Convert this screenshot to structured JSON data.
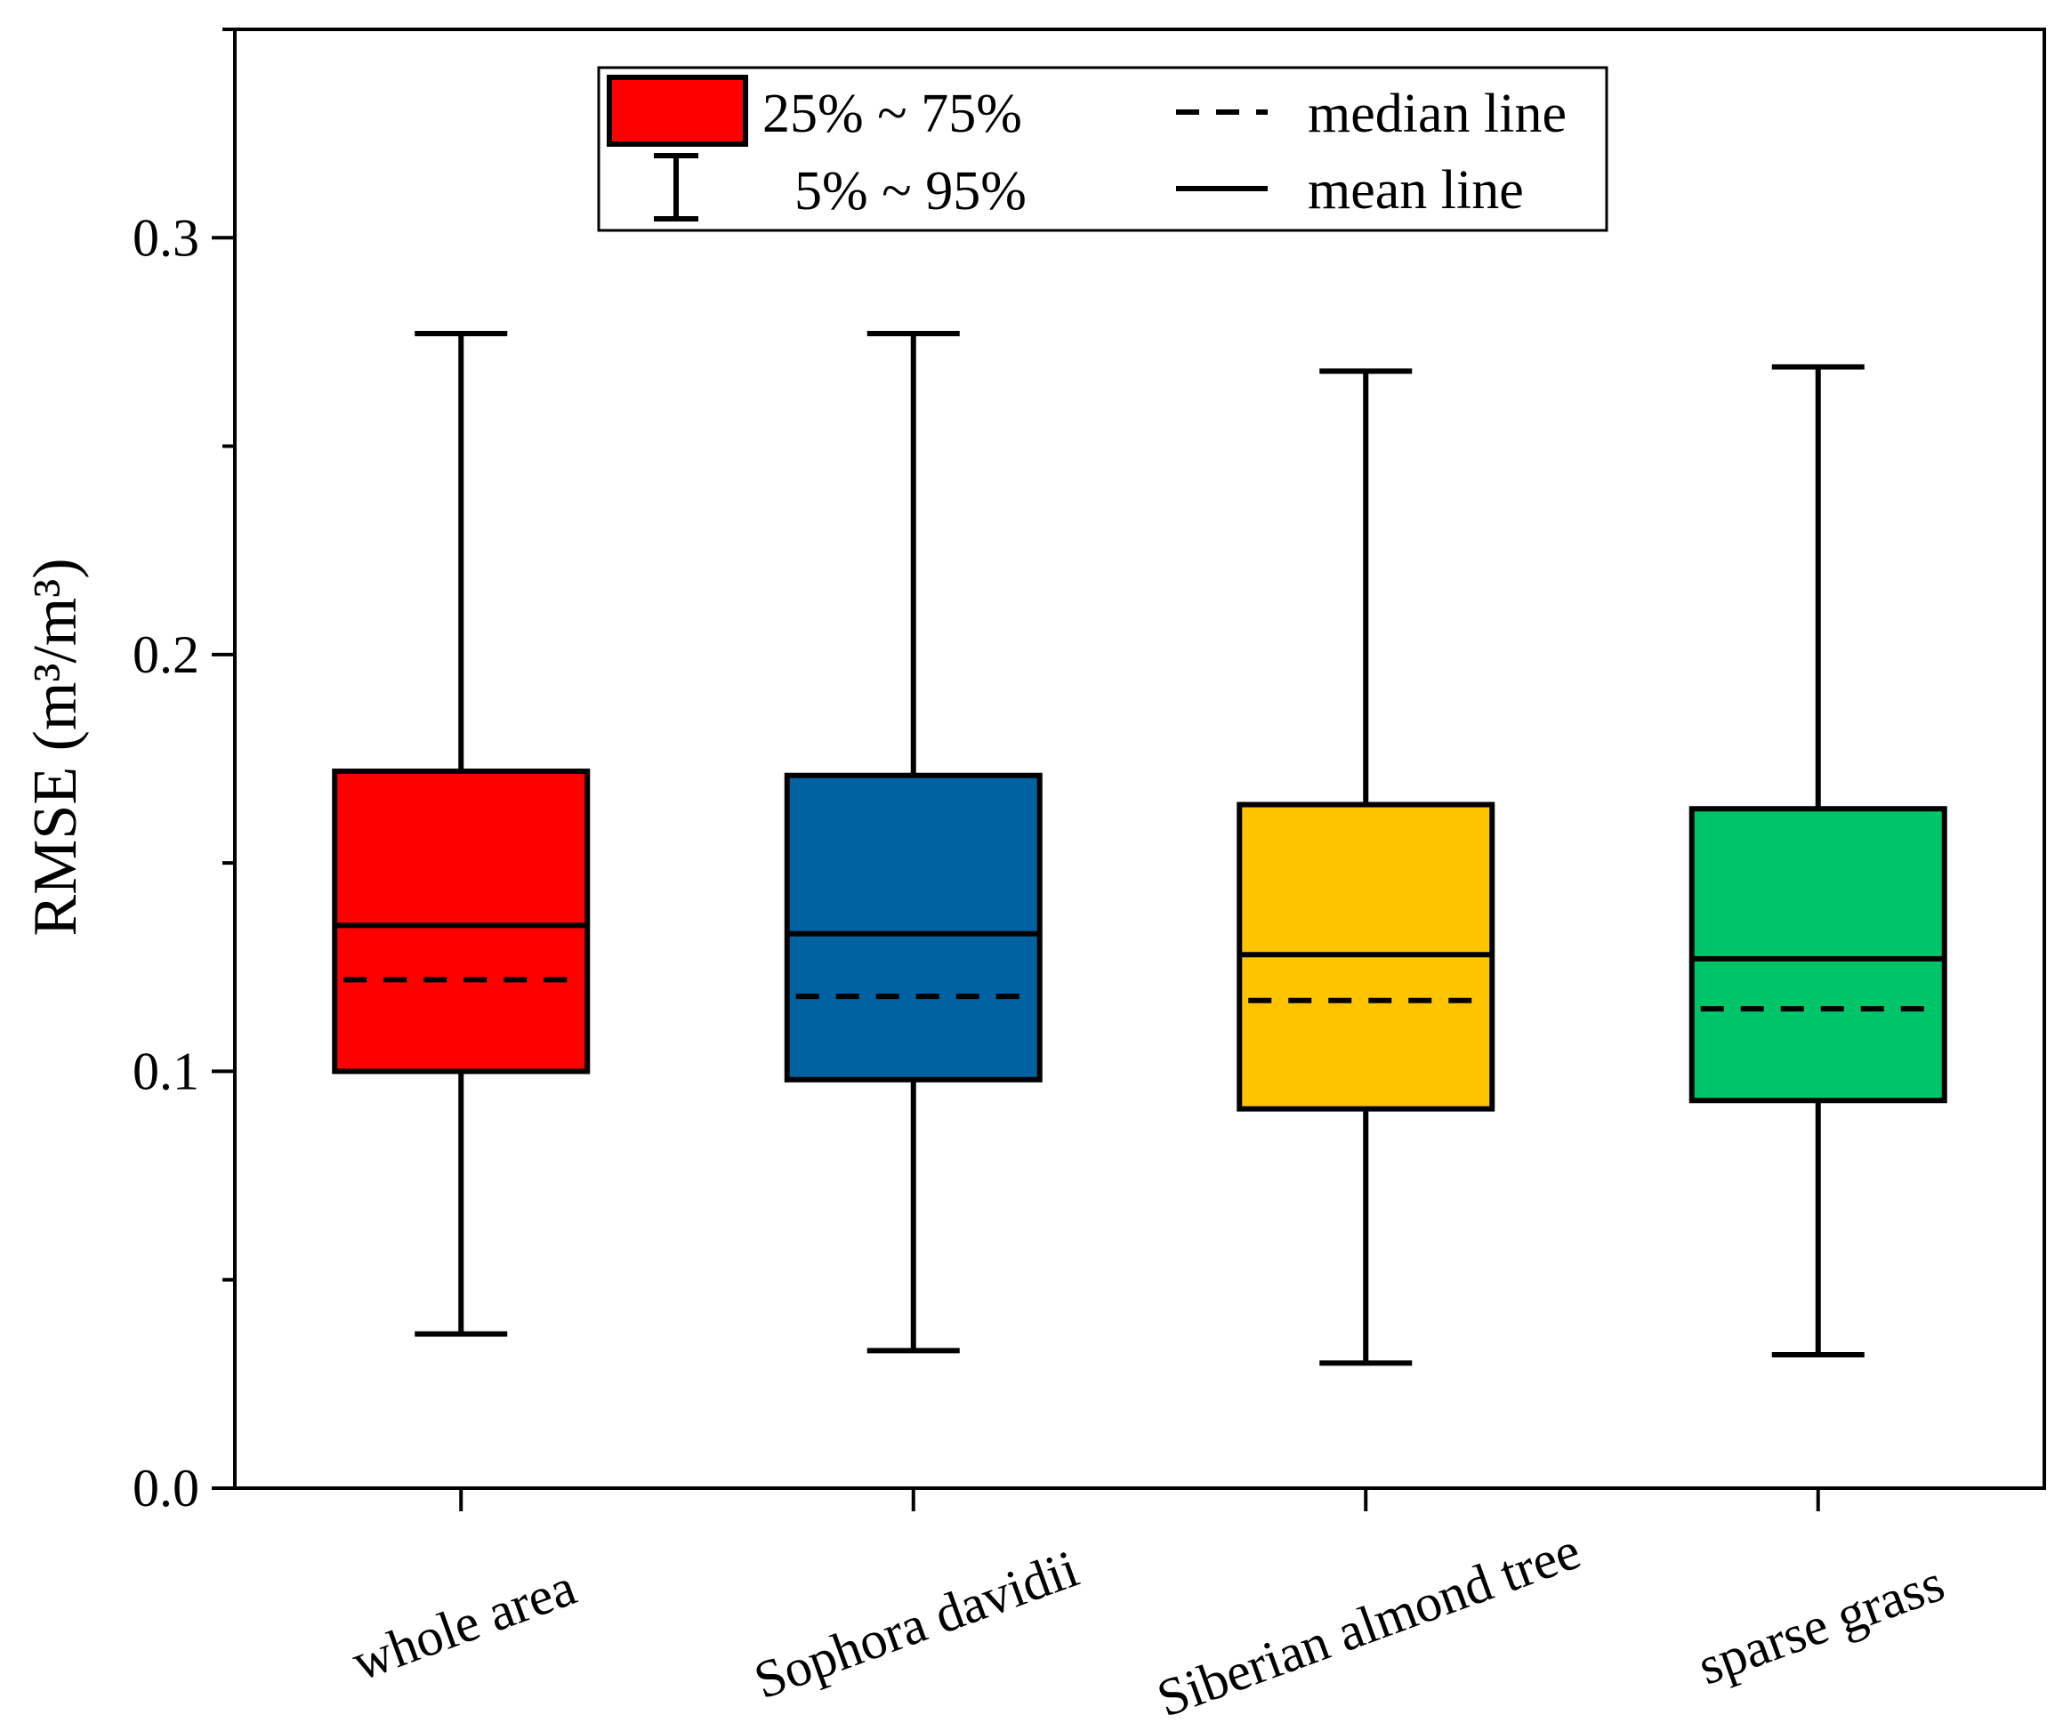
{
  "chart_data": {
    "type": "box",
    "title": "",
    "xlabel": "",
    "ylabel": "RMSE (m³/m³)",
    "ylim": [
      0.0,
      0.35
    ],
    "yticks": [
      0.0,
      0.1,
      0.2,
      0.3
    ],
    "ytick_labels": [
      "0.0",
      "0.1",
      "0.2",
      "0.3"
    ],
    "categories": [
      "whole area",
      "Sophora davidii",
      "Siberian almond tree",
      "sparse grass"
    ],
    "series": [
      {
        "name": "whole area",
        "color": "#FF0000",
        "p5": 0.037,
        "q1": 0.1,
        "median": 0.122,
        "mean": 0.135,
        "q3": 0.172,
        "p95": 0.277
      },
      {
        "name": "Sophora davidii",
        "color": "#0062A0",
        "p5": 0.033,
        "q1": 0.098,
        "median": 0.118,
        "mean": 0.133,
        "q3": 0.171,
        "p95": 0.277
      },
      {
        "name": "Siberian almond tree",
        "color": "#FFC400",
        "p5": 0.03,
        "q1": 0.091,
        "median": 0.117,
        "mean": 0.128,
        "q3": 0.164,
        "p95": 0.268
      },
      {
        "name": "sparse grass",
        "color": "#00C46A",
        "p5": 0.032,
        "q1": 0.093,
        "median": 0.115,
        "mean": 0.127,
        "q3": 0.163,
        "p95": 0.269
      }
    ],
    "legend": {
      "position": "top-center",
      "box_label": "25% ~ 75%",
      "whisker_label": "5% ~ 95%",
      "median_label": "median line",
      "mean_label": "mean line",
      "box_color": "#FF0000"
    }
  }
}
